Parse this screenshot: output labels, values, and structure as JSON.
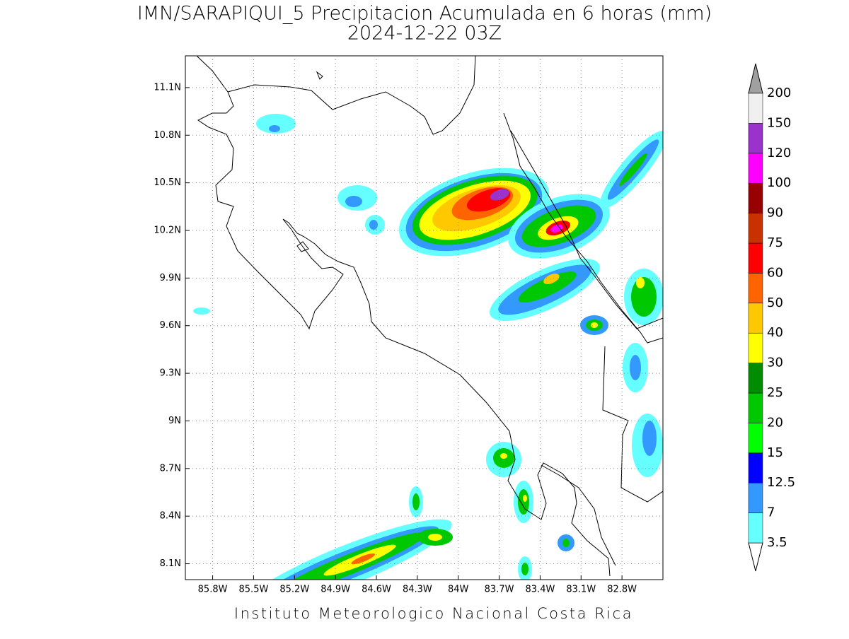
{
  "header": {
    "title": "IMN/SARAPIQUI_5 Precipitacion Acumulada en 6 horas (mm)",
    "subtitle": "2024-12-22 03Z"
  },
  "map": {
    "lonlim": [
      -86.0,
      -82.5
    ],
    "latlim": [
      8.0,
      11.3
    ],
    "lon_ticks": [
      {
        "value": -85.8,
        "label": "85.8W"
      },
      {
        "value": -85.5,
        "label": "85.5W"
      },
      {
        "value": -85.2,
        "label": "85.2W"
      },
      {
        "value": -84.9,
        "label": "84.9W"
      },
      {
        "value": -84.6,
        "label": "84.6W"
      },
      {
        "value": -84.3,
        "label": "84.3W"
      },
      {
        "value": -84.0,
        "label": "84W"
      },
      {
        "value": -83.7,
        "label": "83.7W"
      },
      {
        "value": -83.4,
        "label": "83.4W"
      },
      {
        "value": -83.1,
        "label": "83.1W"
      },
      {
        "value": -82.8,
        "label": "82.8W"
      }
    ],
    "lat_ticks": [
      {
        "value": 8.1,
        "label": "8.1N"
      },
      {
        "value": 8.4,
        "label": "8.4N"
      },
      {
        "value": 8.7,
        "label": "8.7N"
      },
      {
        "value": 9.0,
        "label": "9N"
      },
      {
        "value": 9.3,
        "label": "9.3N"
      },
      {
        "value": 9.6,
        "label": "9.6N"
      },
      {
        "value": 9.9,
        "label": "9.9N"
      },
      {
        "value": 10.2,
        "label": "10.2N"
      },
      {
        "value": 10.5,
        "label": "10.5N"
      },
      {
        "value": 10.8,
        "label": "10.8N"
      },
      {
        "value": 11.1,
        "label": "11.1N"
      }
    ],
    "grid": true
  },
  "colorbar": {
    "levels": [
      3.5,
      7,
      12.5,
      15,
      20,
      25,
      30,
      40,
      50,
      60,
      75,
      90,
      100,
      120,
      150,
      200
    ],
    "colors": [
      "#66ffff",
      "#3399ff",
      "#0000ff",
      "#00ff00",
      "#00c800",
      "#008c00",
      "#ffff00",
      "#ffc800",
      "#ff6400",
      "#ff0000",
      "#c83200",
      "#960000",
      "#ff00ff",
      "#9933cc",
      "#f0f0f0"
    ],
    "under_color": "#ffffff",
    "over_color": "#a0a0a0"
  },
  "footer": "Instituto Meteorologico Nacional Costa Rica"
}
